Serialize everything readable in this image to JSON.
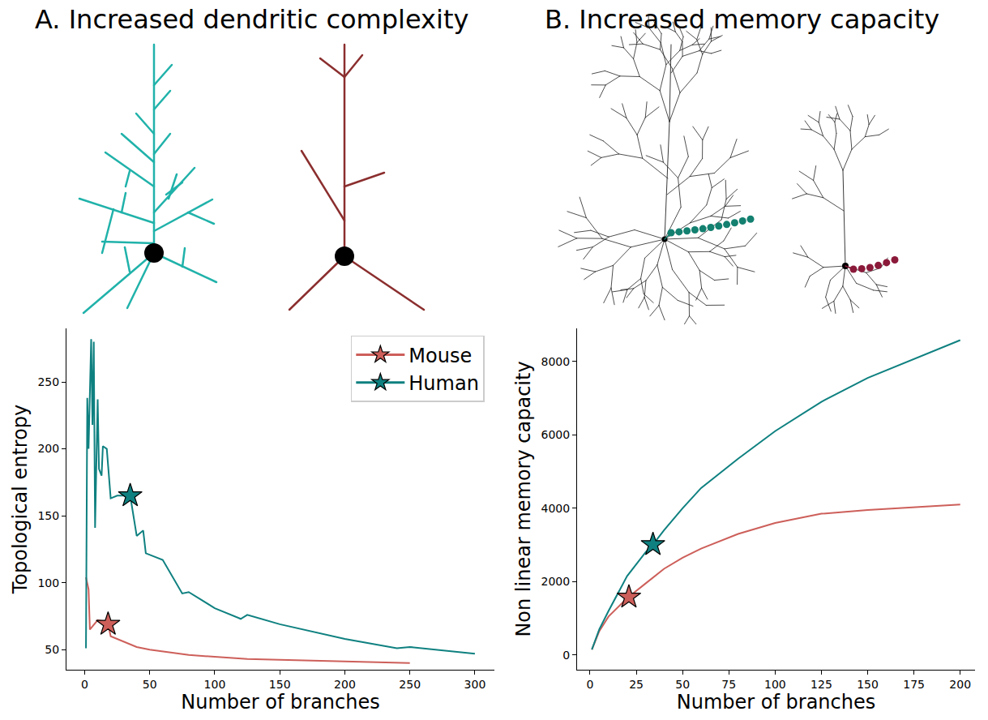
{
  "chart_data": [
    {
      "type": "line",
      "title": "A. Increased dendritic complexity",
      "x_label": "Number of branches",
      "y_label": "Topological entropy",
      "xlim": [
        -14,
        315
      ],
      "ylim": [
        35,
        290
      ],
      "xticks": [
        0,
        50,
        100,
        150,
        200,
        250,
        300
      ],
      "yticks": [
        50,
        100,
        150,
        200,
        250
      ],
      "grid": false,
      "legend": "upper right",
      "series": [
        {
          "name": "Mouse",
          "color": "#cd5f5a",
          "line_style": "solid",
          "marker": "star",
          "x": [
            1,
            2,
            3,
            4,
            8,
            10,
            15,
            18,
            20,
            40,
            50,
            80,
            125,
            200,
            250
          ],
          "values": [
            104,
            100,
            95,
            65,
            70,
            72,
            71,
            69,
            60,
            52,
            50,
            46,
            43,
            41,
            40
          ],
          "highlight": {
            "x": 18,
            "y": 69
          }
        },
        {
          "name": "Human",
          "color": "#0f8080",
          "line_style": "solid",
          "marker": "star",
          "x": [
            1,
            2,
            3,
            5,
            6,
            7,
            8,
            10,
            11,
            13,
            14,
            17,
            20,
            25,
            35,
            40,
            45,
            47,
            60,
            75,
            80,
            100,
            120,
            125,
            150,
            200,
            240,
            250,
            300
          ],
          "values": [
            51,
            238,
            200,
            282,
            218,
            280,
            141,
            237,
            185,
            180,
            202,
            200,
            163,
            165,
            165,
            135,
            139,
            122,
            117,
            92,
            93,
            81,
            73,
            76,
            69,
            58,
            51,
            52,
            47
          ],
          "highlight": {
            "x": 35,
            "y": 165
          }
        }
      ]
    },
    {
      "type": "line",
      "title": "B. Increased memory capacity",
      "x_label": "Number of branches",
      "y_label": "Non linear memory capacity",
      "xlim": [
        -7,
        208
      ],
      "ylim": [
        -400,
        8900
      ],
      "xticks": [
        0,
        25,
        50,
        75,
        100,
        125,
        150,
        175,
        200
      ],
      "yticks": [
        0,
        2000,
        4000,
        6000,
        8000
      ],
      "grid": false,
      "series": [
        {
          "color": "#cd5f5a",
          "line_style": "solid",
          "marker": "star",
          "x": [
            1,
            5,
            10,
            20,
            30,
            40,
            50,
            60,
            80,
            100,
            125,
            150,
            200
          ],
          "values": [
            150,
            650,
            1050,
            1550,
            1950,
            2350,
            2650,
            2900,
            3300,
            3600,
            3850,
            3950,
            4100
          ],
          "highlight": {
            "x": 21,
            "y": 1580
          }
        },
        {
          "color": "#0f8080",
          "line_style": "solid",
          "marker": "star",
          "x": [
            1,
            5,
            10,
            20,
            30,
            34,
            40,
            50,
            60,
            80,
            100,
            125,
            150,
            200
          ],
          "values": [
            150,
            700,
            1200,
            2150,
            2800,
            3010,
            3400,
            4000,
            4550,
            5350,
            6100,
            6900,
            7550,
            8580
          ],
          "highlight": {
            "x": 34,
            "y": 3010
          }
        }
      ]
    }
  ]
}
